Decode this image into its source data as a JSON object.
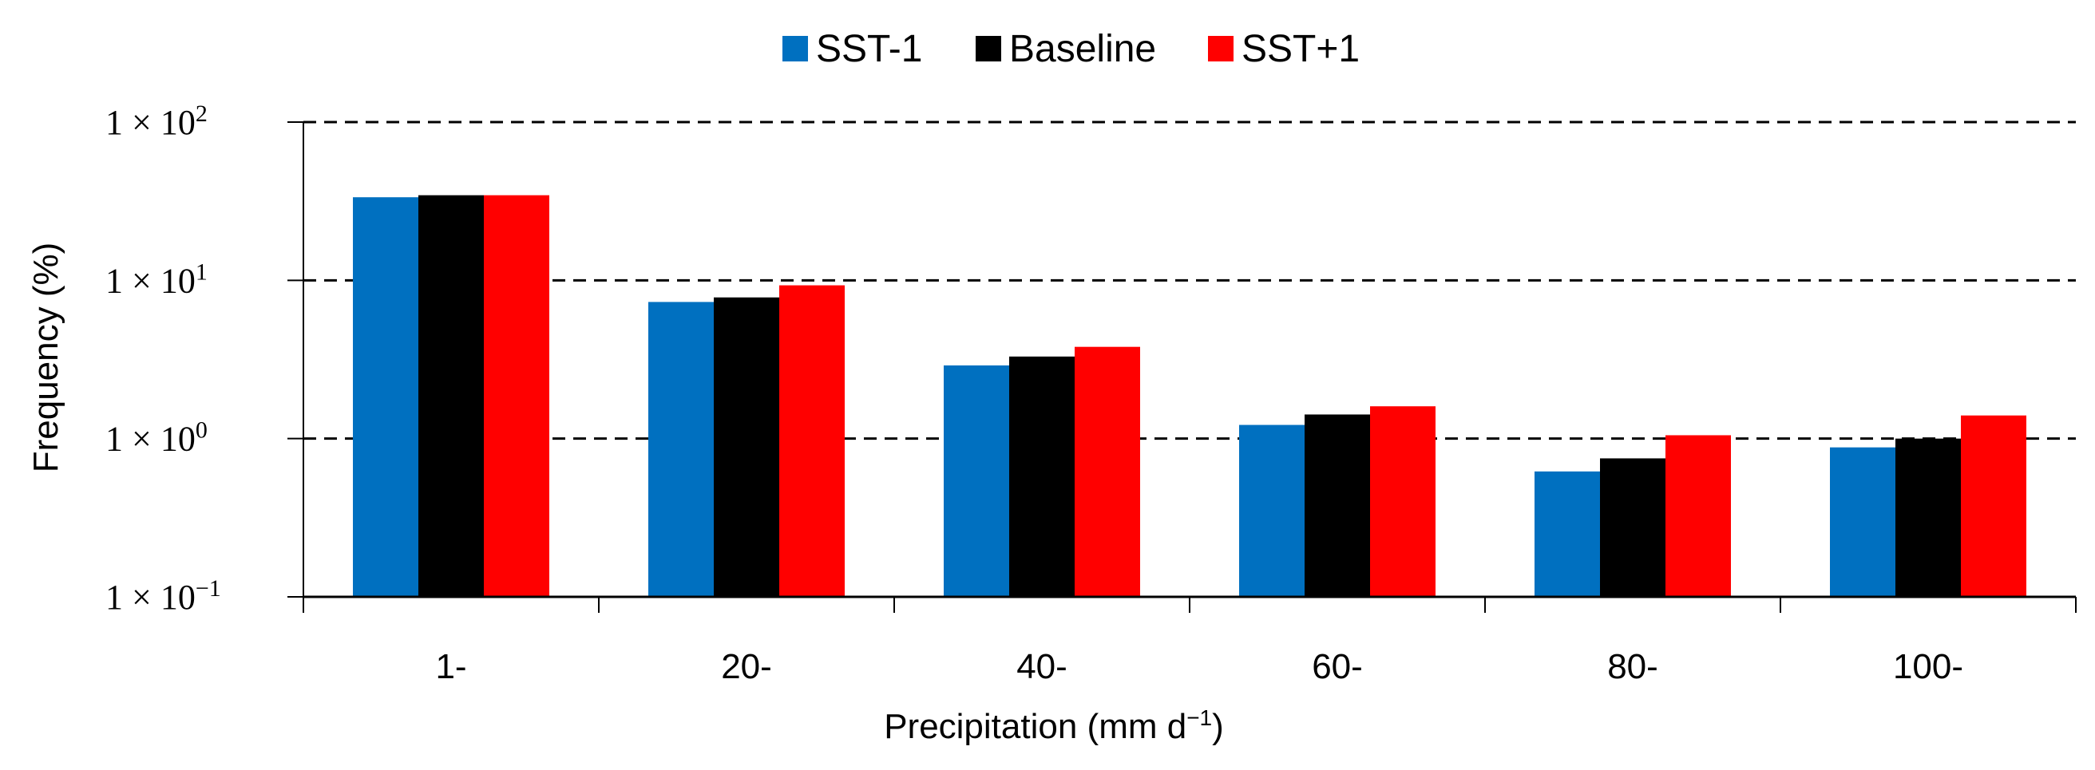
{
  "chart_data": {
    "type": "bar",
    "title": "",
    "xlabel": "Precipitation (mm d",
    "xlabel_sup": "−1",
    "xlabel_close": ")",
    "ylabel": "Frequency (%)",
    "yscale": "log",
    "ylim": [
      0.1,
      100
    ],
    "y_ticks": [
      {
        "value": 100,
        "base": "1 × 10",
        "exp": "2"
      },
      {
        "value": 10,
        "base": "1 × 10",
        "exp": "1"
      },
      {
        "value": 1,
        "base": "1 × 10",
        "exp": "0"
      },
      {
        "value": 0.1,
        "base": "1 × 10",
        "exp": "−1"
      }
    ],
    "grid": "horizontal dashed",
    "legend_position": "top-center",
    "categories": [
      "1-",
      "20-",
      "40-",
      "60-",
      "80-",
      "100-"
    ],
    "series": [
      {
        "name": "SST-1",
        "color": "#0070c0",
        "values": [
          33.5,
          7.3,
          2.9,
          1.22,
          0.62,
          0.88
        ]
      },
      {
        "name": "Baseline",
        "color": "#000000",
        "values": [
          34.5,
          7.8,
          3.3,
          1.42,
          0.75,
          1.0
        ]
      },
      {
        "name": "SST+1",
        "color": "#ff0000",
        "values": [
          34.5,
          9.3,
          3.8,
          1.6,
          1.05,
          1.4
        ]
      }
    ]
  }
}
